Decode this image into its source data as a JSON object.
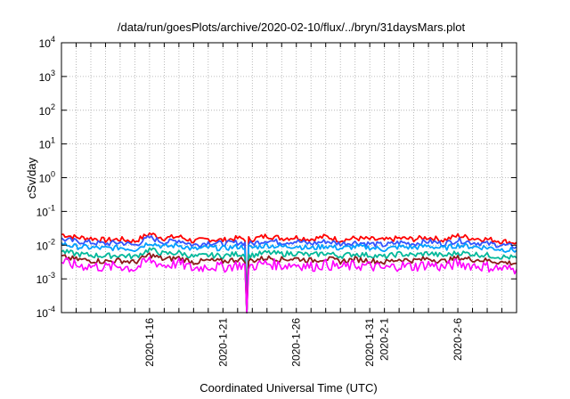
{
  "chart_data": {
    "type": "line",
    "title": "/data/run/goesPlots/archive/2020-02-10/flux/../bryn/31daysMars.plot",
    "xlabel": "Coordinated Universal Time (UTC)",
    "ylabel": "cSv/day",
    "y_scale": "log",
    "ylim": [
      0.0001,
      10000
    ],
    "xlim": [
      "2020-01-10",
      "2020-02-10"
    ],
    "y_ticks": [
      {
        "value": 0.0001,
        "base": "10",
        "exp": "-4"
      },
      {
        "value": 0.001,
        "base": "10",
        "exp": "-3"
      },
      {
        "value": 0.01,
        "base": "10",
        "exp": "-2"
      },
      {
        "value": 0.1,
        "base": "10",
        "exp": "-1"
      },
      {
        "value": 1,
        "base": "10",
        "exp": "0"
      },
      {
        "value": 10,
        "base": "10",
        "exp": "1"
      },
      {
        "value": 100,
        "base": "10",
        "exp": "2"
      },
      {
        "value": 1000,
        "base": "10",
        "exp": "3"
      },
      {
        "value": 10000,
        "base": "10",
        "exp": "4"
      }
    ],
    "x_ticks": [
      {
        "date": "2020-01-16",
        "label": "2020-1-16"
      },
      {
        "date": "2020-01-21",
        "label": "2020-1-21"
      },
      {
        "date": "2020-01-26",
        "label": "2020-1-26"
      },
      {
        "date": "2020-01-31",
        "label": "2020-1-31"
      },
      {
        "date": "2020-02-01",
        "label": "2020-2-1"
      },
      {
        "date": "2020-02-06",
        "label": "2020-2-6"
      }
    ],
    "grid": true,
    "grid_x_dates": [
      "2020-01-11",
      "2020-01-12",
      "2020-01-13",
      "2020-01-14",
      "2020-01-15",
      "2020-01-16",
      "2020-01-17",
      "2020-01-18",
      "2020-01-19",
      "2020-01-20",
      "2020-01-21",
      "2020-01-22",
      "2020-01-23",
      "2020-01-24",
      "2020-01-25",
      "2020-01-26",
      "2020-01-27",
      "2020-01-28",
      "2020-01-29",
      "2020-01-30",
      "2020-01-31",
      "2020-02-01",
      "2020-02-02",
      "2020-02-03",
      "2020-02-04",
      "2020-02-05",
      "2020-02-06",
      "2020-02-07",
      "2020-02-08",
      "2020-02-09"
    ],
    "dropout": {
      "date": "2020-01-22T15:00",
      "to_y": 0.0001
    },
    "series": [
      {
        "color": "#ff0000",
        "x": [
          "2020-01-10",
          "2020-01-11",
          "2020-01-12",
          "2020-01-13",
          "2020-01-14",
          "2020-01-15",
          "2020-01-16",
          "2020-01-17",
          "2020-01-18",
          "2020-01-19",
          "2020-01-20",
          "2020-01-21",
          "2020-01-22",
          "2020-01-23",
          "2020-01-24",
          "2020-01-25",
          "2020-01-26",
          "2020-01-27",
          "2020-01-28",
          "2020-01-29",
          "2020-01-30",
          "2020-01-31",
          "2020-02-01",
          "2020-02-02",
          "2020-02-03",
          "2020-02-04",
          "2020-02-05",
          "2020-02-06",
          "2020-02-07",
          "2020-02-08",
          "2020-02-09",
          "2020-02-10"
        ],
        "y": [
          0.021,
          0.017,
          0.016,
          0.014,
          0.015,
          0.013,
          0.022,
          0.016,
          0.018,
          0.013,
          0.015,
          0.014,
          0.016,
          0.015,
          0.019,
          0.016,
          0.017,
          0.015,
          0.018,
          0.014,
          0.016,
          0.015,
          0.014,
          0.016,
          0.015,
          0.017,
          0.014,
          0.019,
          0.016,
          0.015,
          0.013,
          0.012
        ]
      },
      {
        "color": "#3355ff",
        "x": [
          "2020-01-10",
          "2020-01-11",
          "2020-01-12",
          "2020-01-13",
          "2020-01-14",
          "2020-01-15",
          "2020-01-16",
          "2020-01-17",
          "2020-01-18",
          "2020-01-19",
          "2020-01-20",
          "2020-01-21",
          "2020-01-22",
          "2020-01-23",
          "2020-01-24",
          "2020-01-25",
          "2020-01-26",
          "2020-01-27",
          "2020-01-28",
          "2020-01-29",
          "2020-01-30",
          "2020-01-31",
          "2020-02-01",
          "2020-02-02",
          "2020-02-03",
          "2020-02-04",
          "2020-02-05",
          "2020-02-06",
          "2020-02-07",
          "2020-02-08",
          "2020-02-09",
          "2020-02-10"
        ],
        "y": [
          0.015,
          0.013,
          0.012,
          0.011,
          0.012,
          0.01,
          0.017,
          0.012,
          0.014,
          0.01,
          0.012,
          0.011,
          0.012,
          0.011,
          0.014,
          0.012,
          0.013,
          0.011,
          0.013,
          0.011,
          0.012,
          0.011,
          0.01,
          0.012,
          0.011,
          0.013,
          0.011,
          0.014,
          0.012,
          0.011,
          0.01,
          0.009
        ]
      },
      {
        "color": "#00a0ff",
        "x": [
          "2020-01-10",
          "2020-01-11",
          "2020-01-12",
          "2020-01-13",
          "2020-01-14",
          "2020-01-15",
          "2020-01-16",
          "2020-01-17",
          "2020-01-18",
          "2020-01-19",
          "2020-01-20",
          "2020-01-21",
          "2020-01-22",
          "2020-01-23",
          "2020-01-24",
          "2020-01-25",
          "2020-01-26",
          "2020-01-27",
          "2020-01-28",
          "2020-01-29",
          "2020-01-30",
          "2020-01-31",
          "2020-02-01",
          "2020-02-02",
          "2020-02-03",
          "2020-02-04",
          "2020-02-05",
          "2020-02-06",
          "2020-02-07",
          "2020-02-08",
          "2020-02-09",
          "2020-02-10"
        ],
        "y": [
          0.011,
          0.009,
          0.0085,
          0.008,
          0.0085,
          0.0075,
          0.012,
          0.009,
          0.01,
          0.0075,
          0.0085,
          0.008,
          0.009,
          0.0085,
          0.01,
          0.009,
          0.0095,
          0.008,
          0.0095,
          0.008,
          0.009,
          0.0085,
          0.0075,
          0.009,
          0.0085,
          0.0095,
          0.008,
          0.01,
          0.009,
          0.0085,
          0.0075,
          0.007
        ]
      },
      {
        "color": "#00b89a",
        "x": [
          "2020-01-10",
          "2020-01-11",
          "2020-01-12",
          "2020-01-13",
          "2020-01-14",
          "2020-01-15",
          "2020-01-16",
          "2020-01-17",
          "2020-01-18",
          "2020-01-19",
          "2020-01-20",
          "2020-01-21",
          "2020-01-22",
          "2020-01-23",
          "2020-01-24",
          "2020-01-25",
          "2020-01-26",
          "2020-01-27",
          "2020-01-28",
          "2020-01-29",
          "2020-01-30",
          "2020-01-31",
          "2020-02-01",
          "2020-02-02",
          "2020-02-03",
          "2020-02-04",
          "2020-02-05",
          "2020-02-06",
          "2020-02-07",
          "2020-02-08",
          "2020-02-09",
          "2020-02-10"
        ],
        "y": [
          0.0065,
          0.0055,
          0.005,
          0.0048,
          0.005,
          0.0045,
          0.0075,
          0.0055,
          0.006,
          0.0045,
          0.005,
          0.0048,
          0.0055,
          0.005,
          0.006,
          0.0055,
          0.0058,
          0.005,
          0.0058,
          0.0048,
          0.0055,
          0.005,
          0.0045,
          0.0055,
          0.005,
          0.0058,
          0.0048,
          0.006,
          0.0055,
          0.005,
          0.0045,
          0.0042
        ]
      },
      {
        "color": "#8b1a1a",
        "x": [
          "2020-01-10",
          "2020-01-11",
          "2020-01-12",
          "2020-01-13",
          "2020-01-14",
          "2020-01-15",
          "2020-01-16",
          "2020-01-17",
          "2020-01-18",
          "2020-01-19",
          "2020-01-20",
          "2020-01-21",
          "2020-01-22",
          "2020-01-23",
          "2020-01-24",
          "2020-01-25",
          "2020-01-26",
          "2020-01-27",
          "2020-01-28",
          "2020-01-29",
          "2020-01-30",
          "2020-01-31",
          "2020-02-01",
          "2020-02-02",
          "2020-02-03",
          "2020-02-04",
          "2020-02-05",
          "2020-02-06",
          "2020-02-07",
          "2020-02-08",
          "2020-02-09",
          "2020-02-10"
        ],
        "y": [
          0.0045,
          0.0038,
          0.0035,
          0.0033,
          0.0035,
          0.0031,
          0.0052,
          0.0038,
          0.0042,
          0.0031,
          0.0035,
          0.0033,
          0.0038,
          0.0035,
          0.0042,
          0.0038,
          0.004,
          0.0035,
          0.004,
          0.0033,
          0.0038,
          0.0035,
          0.0031,
          0.0038,
          0.0035,
          0.004,
          0.0033,
          0.0042,
          0.0038,
          0.0035,
          0.0031,
          0.0029
        ]
      },
      {
        "color": "#ff00ff",
        "x": [
          "2020-01-10",
          "2020-01-11",
          "2020-01-12",
          "2020-01-13",
          "2020-01-14",
          "2020-01-15",
          "2020-01-16",
          "2020-01-17",
          "2020-01-18",
          "2020-01-19",
          "2020-01-20",
          "2020-01-21",
          "2020-01-22",
          "2020-01-23",
          "2020-01-24",
          "2020-01-25",
          "2020-01-26",
          "2020-01-27",
          "2020-01-28",
          "2020-01-29",
          "2020-01-30",
          "2020-01-31",
          "2020-02-01",
          "2020-02-02",
          "2020-02-03",
          "2020-02-04",
          "2020-02-05",
          "2020-02-06",
          "2020-02-07",
          "2020-02-08",
          "2020-02-09",
          "2020-02-10"
        ],
        "y": [
          0.0032,
          0.0025,
          0.0024,
          0.0022,
          0.0024,
          0.002,
          0.0036,
          0.0025,
          0.0029,
          0.002,
          0.0024,
          0.0022,
          0.0026,
          0.0024,
          0.0029,
          0.0025,
          0.0027,
          0.0023,
          0.0027,
          0.0022,
          0.0025,
          0.0024,
          0.002,
          0.0025,
          0.0023,
          0.0027,
          0.0022,
          0.0029,
          0.0025,
          0.0023,
          0.002,
          0.0019
        ]
      }
    ]
  }
}
